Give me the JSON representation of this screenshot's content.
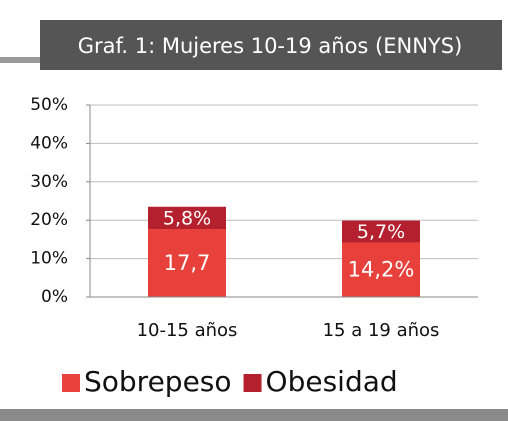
{
  "chart_data": {
    "type": "stacked-bar",
    "title": "Graf. 1: Mujeres 10-19 años (ENNYS)",
    "categories": [
      "10-15 años",
      "15 a 19 años"
    ],
    "series": [
      {
        "name": "Sobrepeso",
        "color": "#e8403a",
        "values": [
          17.7,
          14.2
        ],
        "value_labels": [
          "17,7",
          "14,2%"
        ]
      },
      {
        "name": "Obesidad",
        "color": "#b5202e",
        "values": [
          5.8,
          5.7
        ],
        "value_labels": [
          "5,8%",
          "5,7%"
        ]
      }
    ],
    "ylim": [
      0,
      50
    ],
    "yticks": [
      {
        "value": 0,
        "label": "0%"
      },
      {
        "value": 10,
        "label": "10%"
      },
      {
        "value": 20,
        "label": "20%"
      },
      {
        "value": 30,
        "label": "30%"
      },
      {
        "value": 40,
        "label": "40%"
      },
      {
        "value": 50,
        "label": "50%"
      }
    ],
    "grid": true,
    "legend": "bottom"
  }
}
